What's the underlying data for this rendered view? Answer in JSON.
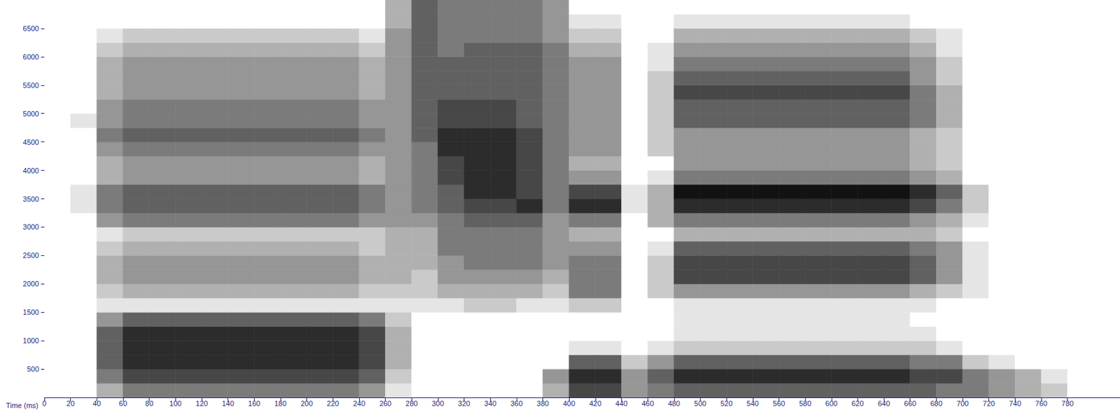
{
  "chart_data": {
    "type": "heatmap",
    "x_label": "Time (ms)",
    "xlim": [
      0,
      820
    ],
    "xticks": [
      0,
      20,
      40,
      60,
      80,
      100,
      120,
      140,
      160,
      180,
      200,
      220,
      240,
      260,
      280,
      300,
      320,
      340,
      360,
      380,
      400,
      420,
      440,
      460,
      480,
      500,
      520,
      540,
      560,
      580,
      600,
      620,
      640,
      660,
      680,
      700,
      720,
      740,
      760,
      780
    ],
    "ylim": [
      0,
      7000
    ],
    "yticks": [
      500,
      1000,
      1500,
      2000,
      2500,
      3000,
      3500,
      4000,
      4500,
      5000,
      5500,
      6000,
      6500
    ],
    "zlim": [
      0,
      9
    ],
    "x_bins": [
      0,
      20,
      40,
      60,
      80,
      100,
      120,
      140,
      160,
      180,
      200,
      220,
      240,
      260,
      280,
      300,
      320,
      340,
      360,
      380,
      400,
      420,
      440,
      460,
      480,
      500,
      520,
      540,
      560,
      580,
      600,
      620,
      640,
      660,
      680,
      700,
      720,
      740,
      760,
      780,
      800,
      820
    ],
    "y_bins": [
      0,
      250,
      500,
      750,
      1000,
      1250,
      1500,
      1750,
      2000,
      2250,
      2500,
      2750,
      3000,
      3250,
      3500,
      3750,
      4000,
      4250,
      4500,
      4750,
      5000,
      5250,
      5500,
      5750,
      6000,
      6250,
      6500,
      6750,
      7000
    ],
    "cells": [
      [
        0,
        0,
        0,
        0,
        0,
        0,
        0,
        0,
        0,
        0,
        0,
        0,
        0,
        0,
        0,
        0,
        0,
        0,
        0,
        0,
        0,
        0,
        0,
        0,
        0,
        0,
        0,
        0
      ],
      [
        0,
        0,
        0,
        0,
        0,
        0,
        0,
        0,
        0,
        0,
        0,
        0,
        0,
        1,
        1,
        0,
        0,
        0,
        0,
        1,
        0,
        0,
        0,
        0,
        0,
        0,
        0,
        0
      ],
      [
        3,
        5,
        6,
        6,
        6,
        4,
        1,
        2,
        3,
        3,
        2,
        1,
        4,
        5,
        5,
        3,
        3,
        4,
        5,
        4,
        4,
        3,
        3,
        3,
        2,
        1,
        0,
        0
      ],
      [
        5,
        7,
        8,
        8,
        8,
        6,
        1,
        3,
        4,
        4,
        3,
        2,
        5,
        6,
        6,
        4,
        4,
        5,
        6,
        5,
        5,
        4,
        4,
        4,
        3,
        2,
        0,
        0
      ],
      [
        5,
        7,
        8,
        8,
        8,
        6,
        1,
        3,
        4,
        4,
        3,
        2,
        5,
        6,
        6,
        4,
        4,
        5,
        6,
        5,
        5,
        4,
        4,
        4,
        3,
        2,
        0,
        0
      ],
      [
        5,
        7,
        8,
        8,
        8,
        6,
        1,
        3,
        4,
        4,
        3,
        2,
        5,
        6,
        6,
        4,
        4,
        5,
        6,
        5,
        5,
        4,
        4,
        4,
        3,
        2,
        0,
        0
      ],
      [
        5,
        7,
        8,
        8,
        8,
        6,
        1,
        3,
        4,
        4,
        3,
        2,
        5,
        6,
        6,
        4,
        4,
        5,
        6,
        5,
        5,
        4,
        4,
        4,
        3,
        2,
        0,
        0
      ],
      [
        5,
        7,
        8,
        8,
        8,
        6,
        1,
        3,
        4,
        4,
        3,
        2,
        5,
        6,
        6,
        4,
        4,
        5,
        6,
        5,
        5,
        4,
        4,
        4,
        3,
        2,
        0,
        0
      ],
      [
        5,
        7,
        8,
        8,
        8,
        6,
        1,
        3,
        4,
        4,
        3,
        2,
        5,
        6,
        6,
        4,
        4,
        5,
        6,
        5,
        5,
        4,
        4,
        4,
        3,
        2,
        0,
        0
      ],
      [
        5,
        7,
        8,
        8,
        8,
        6,
        1,
        3,
        4,
        4,
        3,
        2,
        5,
        6,
        6,
        4,
        4,
        5,
        6,
        5,
        5,
        4,
        4,
        4,
        3,
        2,
        0,
        0
      ],
      [
        5,
        7,
        8,
        8,
        8,
        6,
        1,
        3,
        4,
        4,
        3,
        2,
        5,
        6,
        6,
        4,
        4,
        5,
        6,
        5,
        5,
        4,
        4,
        4,
        3,
        2,
        0,
        0
      ],
      [
        5,
        7,
        8,
        8,
        8,
        6,
        1,
        3,
        4,
        4,
        3,
        2,
        5,
        6,
        6,
        4,
        4,
        5,
        6,
        5,
        5,
        4,
        4,
        4,
        3,
        2,
        0,
        0
      ],
      [
        4,
        6,
        7,
        7,
        7,
        5,
        1,
        2,
        3,
        3,
        2,
        2,
        4,
        5,
        5,
        3,
        3,
        4,
        5,
        4,
        4,
        3,
        3,
        3,
        2,
        1,
        0,
        0
      ],
      [
        1,
        2,
        3,
        3,
        3,
        2,
        1,
        2,
        3,
        3,
        3,
        3,
        4,
        4,
        4,
        4,
        4,
        4,
        4,
        4,
        4,
        4,
        4,
        4,
        4,
        4,
        3,
        3
      ],
      [
        0,
        0,
        0,
        0,
        0,
        0,
        1,
        2,
        2,
        3,
        3,
        3,
        4,
        5,
        5,
        5,
        5,
        5,
        6,
        6,
        6,
        6,
        6,
        6,
        6,
        6,
        6,
        6
      ],
      [
        0,
        0,
        0,
        0,
        0,
        0,
        1,
        3,
        4,
        4,
        5,
        5,
        5,
        6,
        6,
        7,
        7,
        8,
        8,
        7,
        7,
        6,
        6,
        6,
        5,
        5,
        5,
        5
      ],
      [
        0,
        0,
        0,
        0,
        0,
        0,
        2,
        3,
        4,
        5,
        5,
        5,
        6,
        7,
        8,
        8,
        8,
        8,
        8,
        7,
        7,
        6,
        6,
        6,
        6,
        5,
        5,
        5
      ],
      [
        0,
        0,
        0,
        0,
        0,
        0,
        2,
        3,
        4,
        5,
        5,
        5,
        6,
        7,
        8,
        8,
        8,
        8,
        8,
        7,
        7,
        6,
        6,
        6,
        6,
        5,
        5,
        5
      ],
      [
        0,
        0,
        0,
        0,
        0,
        0,
        1,
        3,
        4,
        5,
        5,
        5,
        6,
        8,
        7,
        7,
        7,
        7,
        7,
        6,
        6,
        6,
        6,
        6,
        6,
        5,
        5,
        5
      ],
      [
        3,
        4,
        0,
        0,
        0,
        0,
        1,
        2,
        3,
        4,
        4,
        4,
        4,
        5,
        5,
        5,
        5,
        5,
        5,
        5,
        5,
        5,
        5,
        5,
        5,
        4,
        4,
        4
      ],
      [
        7,
        8,
        6,
        1,
        0,
        0,
        2,
        5,
        5,
        5,
        4,
        3,
        5,
        8,
        7,
        4,
        3,
        4,
        4,
        4,
        4,
        4,
        4,
        4,
        3,
        2,
        1,
        0
      ],
      [
        7,
        8,
        6,
        1,
        0,
        0,
        2,
        5,
        5,
        5,
        4,
        3,
        5,
        8,
        7,
        4,
        3,
        4,
        4,
        4,
        4,
        4,
        4,
        4,
        3,
        2,
        1,
        0
      ],
      [
        4,
        4,
        2,
        0,
        0,
        0,
        0,
        0,
        0,
        0,
        0,
        0,
        0,
        1,
        1,
        0,
        0,
        0,
        0,
        0,
        0,
        0,
        0,
        0,
        0,
        0,
        0,
        0
      ],
      [
        5,
        6,
        4,
        1,
        0,
        0,
        0,
        2,
        2,
        2,
        1,
        0,
        3,
        3,
        3,
        1,
        0,
        2,
        2,
        2,
        2,
        2,
        2,
        1,
        1,
        0,
        0,
        0
      ],
      [
        6,
        8,
        6,
        2,
        1,
        1,
        1,
        4,
        7,
        7,
        6,
        3,
        5,
        8,
        9,
        5,
        4,
        4,
        4,
        6,
        6,
        7,
        6,
        5,
        4,
        3,
        1,
        0
      ],
      [
        6,
        8,
        6,
        2,
        1,
        1,
        1,
        4,
        7,
        7,
        6,
        3,
        5,
        8,
        9,
        5,
        4,
        4,
        4,
        6,
        6,
        7,
        6,
        5,
        4,
        3,
        1,
        0
      ],
      [
        6,
        8,
        6,
        2,
        1,
        1,
        1,
        4,
        7,
        7,
        6,
        3,
        5,
        8,
        9,
        5,
        4,
        4,
        4,
        6,
        6,
        7,
        6,
        5,
        4,
        3,
        1,
        0
      ],
      [
        6,
        8,
        6,
        2,
        1,
        1,
        1,
        4,
        7,
        7,
        6,
        3,
        5,
        8,
        9,
        5,
        4,
        4,
        4,
        6,
        6,
        7,
        6,
        5,
        4,
        3,
        1,
        0
      ],
      [
        6,
        8,
        6,
        2,
        1,
        1,
        1,
        4,
        7,
        7,
        6,
        3,
        5,
        8,
        9,
        5,
        4,
        4,
        4,
        6,
        6,
        7,
        6,
        5,
        4,
        3,
        1,
        0
      ],
      [
        6,
        8,
        6,
        2,
        1,
        1,
        1,
        4,
        7,
        7,
        6,
        3,
        5,
        8,
        9,
        5,
        4,
        4,
        4,
        6,
        6,
        7,
        6,
        5,
        4,
        3,
        1,
        0
      ],
      [
        6,
        8,
        6,
        2,
        1,
        1,
        1,
        4,
        7,
        7,
        6,
        3,
        5,
        8,
        9,
        5,
        4,
        4,
        4,
        6,
        6,
        7,
        6,
        5,
        4,
        3,
        1,
        0
      ],
      [
        6,
        8,
        6,
        2,
        1,
        1,
        1,
        4,
        7,
        7,
        6,
        3,
        5,
        8,
        9,
        5,
        4,
        4,
        4,
        6,
        6,
        7,
        6,
        5,
        4,
        3,
        1,
        0
      ],
      [
        6,
        8,
        6,
        2,
        1,
        1,
        1,
        4,
        7,
        7,
        6,
        3,
        5,
        8,
        9,
        5,
        4,
        4,
        4,
        6,
        6,
        7,
        6,
        5,
        4,
        3,
        1,
        0
      ],
      [
        6,
        7,
        5,
        2,
        1,
        0,
        1,
        3,
        6,
        6,
        5,
        3,
        4,
        7,
        8,
        4,
        3,
        3,
        3,
        5,
        5,
        5,
        4,
        4,
        3,
        2,
        0,
        0
      ],
      [
        5,
        7,
        5,
        1,
        0,
        0,
        0,
        2,
        4,
        4,
        4,
        2,
        3,
        5,
        6,
        3,
        2,
        2,
        2,
        3,
        3,
        3,
        2,
        2,
        1,
        1,
        0,
        0
      ],
      [
        5,
        5,
        2,
        0,
        0,
        0,
        0,
        1,
        1,
        1,
        1,
        0,
        1,
        2,
        2,
        0,
        0,
        0,
        0,
        0,
        0,
        0,
        0,
        0,
        0,
        0,
        0,
        0
      ],
      [
        4,
        4,
        1,
        0,
        0,
        0,
        0,
        0,
        0,
        0,
        0,
        0,
        0,
        0,
        0,
        0,
        0,
        0,
        0,
        0,
        0,
        0,
        0,
        0,
        0,
        0,
        0,
        0
      ],
      [
        3,
        3,
        0,
        0,
        0,
        0,
        0,
        0,
        0,
        0,
        0,
        0,
        0,
        0,
        0,
        0,
        0,
        0,
        0,
        0,
        0,
        0,
        0,
        0,
        0,
        0,
        0,
        0
      ],
      [
        2,
        1,
        0,
        0,
        0,
        0,
        0,
        0,
        0,
        0,
        0,
        0,
        0,
        0,
        0,
        0,
        0,
        0,
        0,
        0,
        0,
        0,
        0,
        0,
        0,
        0,
        0,
        0
      ],
      [
        0,
        0,
        0,
        0,
        0,
        0,
        0,
        0,
        0,
        0,
        0,
        0,
        0,
        0,
        0,
        0,
        0,
        0,
        0,
        0,
        0,
        0,
        0,
        0,
        0,
        0,
        0,
        0
      ],
      [
        0,
        0,
        0,
        0,
        0,
        0,
        0,
        0,
        0,
        0,
        0,
        0,
        0,
        0,
        0,
        0,
        0,
        0,
        0,
        0,
        0,
        0,
        0,
        0,
        0,
        0,
        0,
        0
      ]
    ]
  }
}
